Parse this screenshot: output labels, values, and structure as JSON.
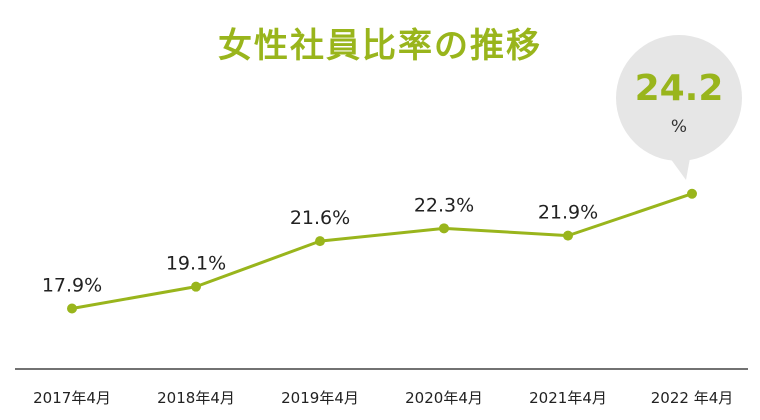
{
  "colors": {
    "accent": "#99b51c",
    "callout_bg": "#e6e6e6",
    "axis": "#444444"
  },
  "chart_data": {
    "type": "line",
    "title": "女性社員比率の推移",
    "xlabel": "",
    "ylabel": "",
    "categories": [
      "2017年4月",
      "2018年4月",
      "2019年4月",
      "2020年4月",
      "2021年4月",
      "2022 年4月"
    ],
    "series": [
      {
        "values": [
          17.9,
          19.1,
          21.6,
          22.3,
          21.9,
          24.2
        ],
        "labels": [
          "17.9%",
          "19.1%",
          "21.6%",
          "22.3%",
          "21.9%",
          ""
        ]
      }
    ],
    "ylim": [
      14.8,
      26.6
    ],
    "grid": false,
    "legend": "none",
    "callout": {
      "value": "24.2",
      "unit": "%"
    }
  }
}
